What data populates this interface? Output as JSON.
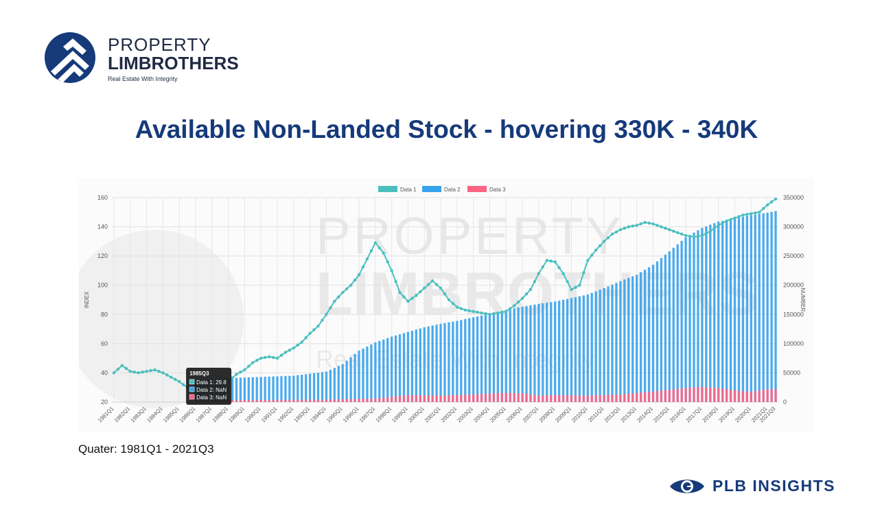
{
  "brand": {
    "name_line1": "PROPERTY",
    "name_line2": "LIMBROTHERS",
    "tagline": "Real Estate With Integrity",
    "color": "#163a7a"
  },
  "title": "Available Non-Landed Stock - hovering 330K - 340K",
  "footnote": "Quater: 1981Q1 - 2021Q3",
  "insights_logo": "PLB INSIGHTS",
  "watermark": {
    "line1": "PROPERTY",
    "line2": "LIMBROTHERS",
    "line3": "Real Estate With Integrity"
  },
  "tooltip": {
    "title": "1985Q3",
    "lines": [
      "Data 1: 29.8",
      "Data 2: NaN",
      "Data 3: NaN"
    ]
  },
  "colors": {
    "data1": "#4bbfbf",
    "data2": "#36a2eb",
    "data3": "#ff6384"
  },
  "chart_data": {
    "type": "bar",
    "title": "",
    "xlabel": "",
    "ylabel": "INDEX",
    "y2label": "NUMBER",
    "ylim": [
      20,
      160
    ],
    "y2lim": [
      0,
      350000
    ],
    "yticks": [
      20,
      40,
      60,
      80,
      100,
      120,
      140,
      160
    ],
    "y2ticks": [
      0,
      50000,
      100000,
      150000,
      200000,
      250000,
      300000,
      350000
    ],
    "x_tick_labels": [
      "1981Q1",
      "1982Q1",
      "1983Q1",
      "1984Q1",
      "1985Q1",
      "1986Q1",
      "1987Q1",
      "1988Q1",
      "1989Q1",
      "1990Q1",
      "1991Q1",
      "1992Q1",
      "1993Q1",
      "1994Q1",
      "1995Q1",
      "1996Q1",
      "1997Q1",
      "1998Q1",
      "1999Q1",
      "2000Q1",
      "2001Q1",
      "2002Q1",
      "2003Q1",
      "2004Q1",
      "2005Q1",
      "2006Q1",
      "2007Q1",
      "2008Q1",
      "2009Q1",
      "2010Q1",
      "2011Q1",
      "2012Q1",
      "2013Q1",
      "2014Q1",
      "2015Q1",
      "2016Q1",
      "2017Q1",
      "2018Q1",
      "2019Q1",
      "2020Q1",
      "2021Q1",
      "2021Q3"
    ],
    "legend": [
      "Data 1",
      "Data 2",
      "Data 3"
    ],
    "legend_position": "top",
    "grid": true,
    "x_start": "1981Q1",
    "x_end": "2021Q3",
    "series": [
      {
        "name": "Data 1",
        "type": "line",
        "axis": "left",
        "anchors": [
          [
            "1981Q1",
            40
          ],
          [
            "1981Q3",
            45
          ],
          [
            "1982Q1",
            41
          ],
          [
            "1982Q3",
            40
          ],
          [
            "1983Q1",
            41
          ],
          [
            "1983Q3",
            42
          ],
          [
            "1984Q1",
            40
          ],
          [
            "1984Q3",
            37
          ],
          [
            "1985Q1",
            34
          ],
          [
            "1985Q3",
            29.8
          ],
          [
            "1986Q1",
            28
          ],
          [
            "1986Q3",
            27
          ],
          [
            "1987Q1",
            29
          ],
          [
            "1987Q3",
            32
          ],
          [
            "1988Q1",
            34
          ],
          [
            "1988Q3",
            39
          ],
          [
            "1989Q1",
            42
          ],
          [
            "1989Q3",
            47
          ],
          [
            "1990Q1",
            50
          ],
          [
            "1990Q3",
            51
          ],
          [
            "1991Q1",
            50
          ],
          [
            "1991Q3",
            54
          ],
          [
            "1992Q1",
            57
          ],
          [
            "1992Q3",
            61
          ],
          [
            "1993Q1",
            67
          ],
          [
            "1993Q3",
            72
          ],
          [
            "1994Q1",
            80
          ],
          [
            "1994Q3",
            89
          ],
          [
            "1995Q1",
            95
          ],
          [
            "1995Q3",
            100
          ],
          [
            "1996Q1",
            107
          ],
          [
            "1996Q3",
            118
          ],
          [
            "1997Q1",
            129
          ],
          [
            "1997Q3",
            122
          ],
          [
            "1998Q1",
            110
          ],
          [
            "1998Q3",
            95
          ],
          [
            "1999Q1",
            89
          ],
          [
            "1999Q3",
            93
          ],
          [
            "2000Q1",
            98
          ],
          [
            "2000Q3",
            103
          ],
          [
            "2001Q1",
            98
          ],
          [
            "2001Q3",
            90
          ],
          [
            "2002Q1",
            85
          ],
          [
            "2002Q3",
            83
          ],
          [
            "2003Q1",
            82
          ],
          [
            "2003Q3",
            81
          ],
          [
            "2004Q1",
            80
          ],
          [
            "2004Q3",
            81
          ],
          [
            "2005Q1",
            82
          ],
          [
            "2005Q3",
            86
          ],
          [
            "2006Q1",
            91
          ],
          [
            "2006Q3",
            97
          ],
          [
            "2007Q1",
            108
          ],
          [
            "2007Q3",
            117
          ],
          [
            "2008Q1",
            116
          ],
          [
            "2008Q3",
            108
          ],
          [
            "2009Q1",
            97
          ],
          [
            "2009Q3",
            100
          ],
          [
            "2010Q1",
            117
          ],
          [
            "2010Q3",
            124
          ],
          [
            "2011Q1",
            130
          ],
          [
            "2011Q3",
            135
          ],
          [
            "2012Q1",
            138
          ],
          [
            "2012Q3",
            140
          ],
          [
            "2013Q1",
            141
          ],
          [
            "2013Q3",
            143
          ],
          [
            "2014Q1",
            142
          ],
          [
            "2014Q3",
            140
          ],
          [
            "2015Q1",
            138
          ],
          [
            "2015Q3",
            136
          ],
          [
            "2016Q1",
            134
          ],
          [
            "2016Q3",
            133
          ],
          [
            "2017Q1",
            134
          ],
          [
            "2017Q3",
            137
          ],
          [
            "2018Q1",
            141
          ],
          [
            "2018Q3",
            144
          ],
          [
            "2019Q1",
            146
          ],
          [
            "2019Q3",
            148
          ],
          [
            "2020Q1",
            149
          ],
          [
            "2020Q3",
            150
          ],
          [
            "2021Q1",
            155
          ],
          [
            "2021Q3",
            159
          ]
        ]
      },
      {
        "name": "Data 2",
        "type": "bar",
        "axis": "right",
        "start": "1986Q1",
        "anchors": [
          [
            "1986Q1",
            38000
          ],
          [
            "1988Q1",
            41000
          ],
          [
            "1990Q1",
            43000
          ],
          [
            "1992Q1",
            45000
          ],
          [
            "1994Q1",
            52000
          ],
          [
            "1995Q1",
            65000
          ],
          [
            "1996Q1",
            88000
          ],
          [
            "1997Q1",
            102000
          ],
          [
            "1998Q1",
            112000
          ],
          [
            "1999Q1",
            120000
          ],
          [
            "2000Q1",
            128000
          ],
          [
            "2001Q1",
            134000
          ],
          [
            "2002Q1",
            139000
          ],
          [
            "2003Q1",
            145000
          ],
          [
            "2004Q1",
            151000
          ],
          [
            "2005Q1",
            158000
          ],
          [
            "2006Q1",
            163000
          ],
          [
            "2007Q1",
            168000
          ],
          [
            "2008Q1",
            172000
          ],
          [
            "2009Q1",
            178000
          ],
          [
            "2010Q1",
            184000
          ],
          [
            "2011Q1",
            195000
          ],
          [
            "2012Q1",
            207000
          ],
          [
            "2013Q1",
            218000
          ],
          [
            "2014Q1",
            235000
          ],
          [
            "2015Q1",
            258000
          ],
          [
            "2016Q1",
            282000
          ],
          [
            "2017Q1",
            298000
          ],
          [
            "2018Q1",
            309000
          ],
          [
            "2019Q1",
            314000
          ],
          [
            "2020Q1",
            320000
          ],
          [
            "2021Q1",
            324000
          ],
          [
            "2021Q3",
            327000
          ]
        ]
      },
      {
        "name": "Data 3",
        "type": "bar",
        "axis": "right",
        "start": "1986Q1",
        "anchors": [
          [
            "1986Q1",
            3000
          ],
          [
            "1990Q1",
            3500
          ],
          [
            "1994Q1",
            4000
          ],
          [
            "1997Q1",
            6000
          ],
          [
            "1998Q1",
            9000
          ],
          [
            "1999Q1",
            12000
          ],
          [
            "2001Q1",
            11000
          ],
          [
            "2003Q1",
            13000
          ],
          [
            "2005Q1",
            16000
          ],
          [
            "2006Q1",
            15000
          ],
          [
            "2007Q1",
            11000
          ],
          [
            "2008Q1",
            12000
          ],
          [
            "2010Q1",
            11000
          ],
          [
            "2012Q1",
            13000
          ],
          [
            "2014Q1",
            18000
          ],
          [
            "2016Q1",
            24000
          ],
          [
            "2017Q1",
            26000
          ],
          [
            "2018Q1",
            24000
          ],
          [
            "2019Q1",
            20000
          ],
          [
            "2020Q1",
            17000
          ],
          [
            "2021Q1",
            22000
          ],
          [
            "2021Q3",
            22000
          ]
        ]
      }
    ]
  }
}
